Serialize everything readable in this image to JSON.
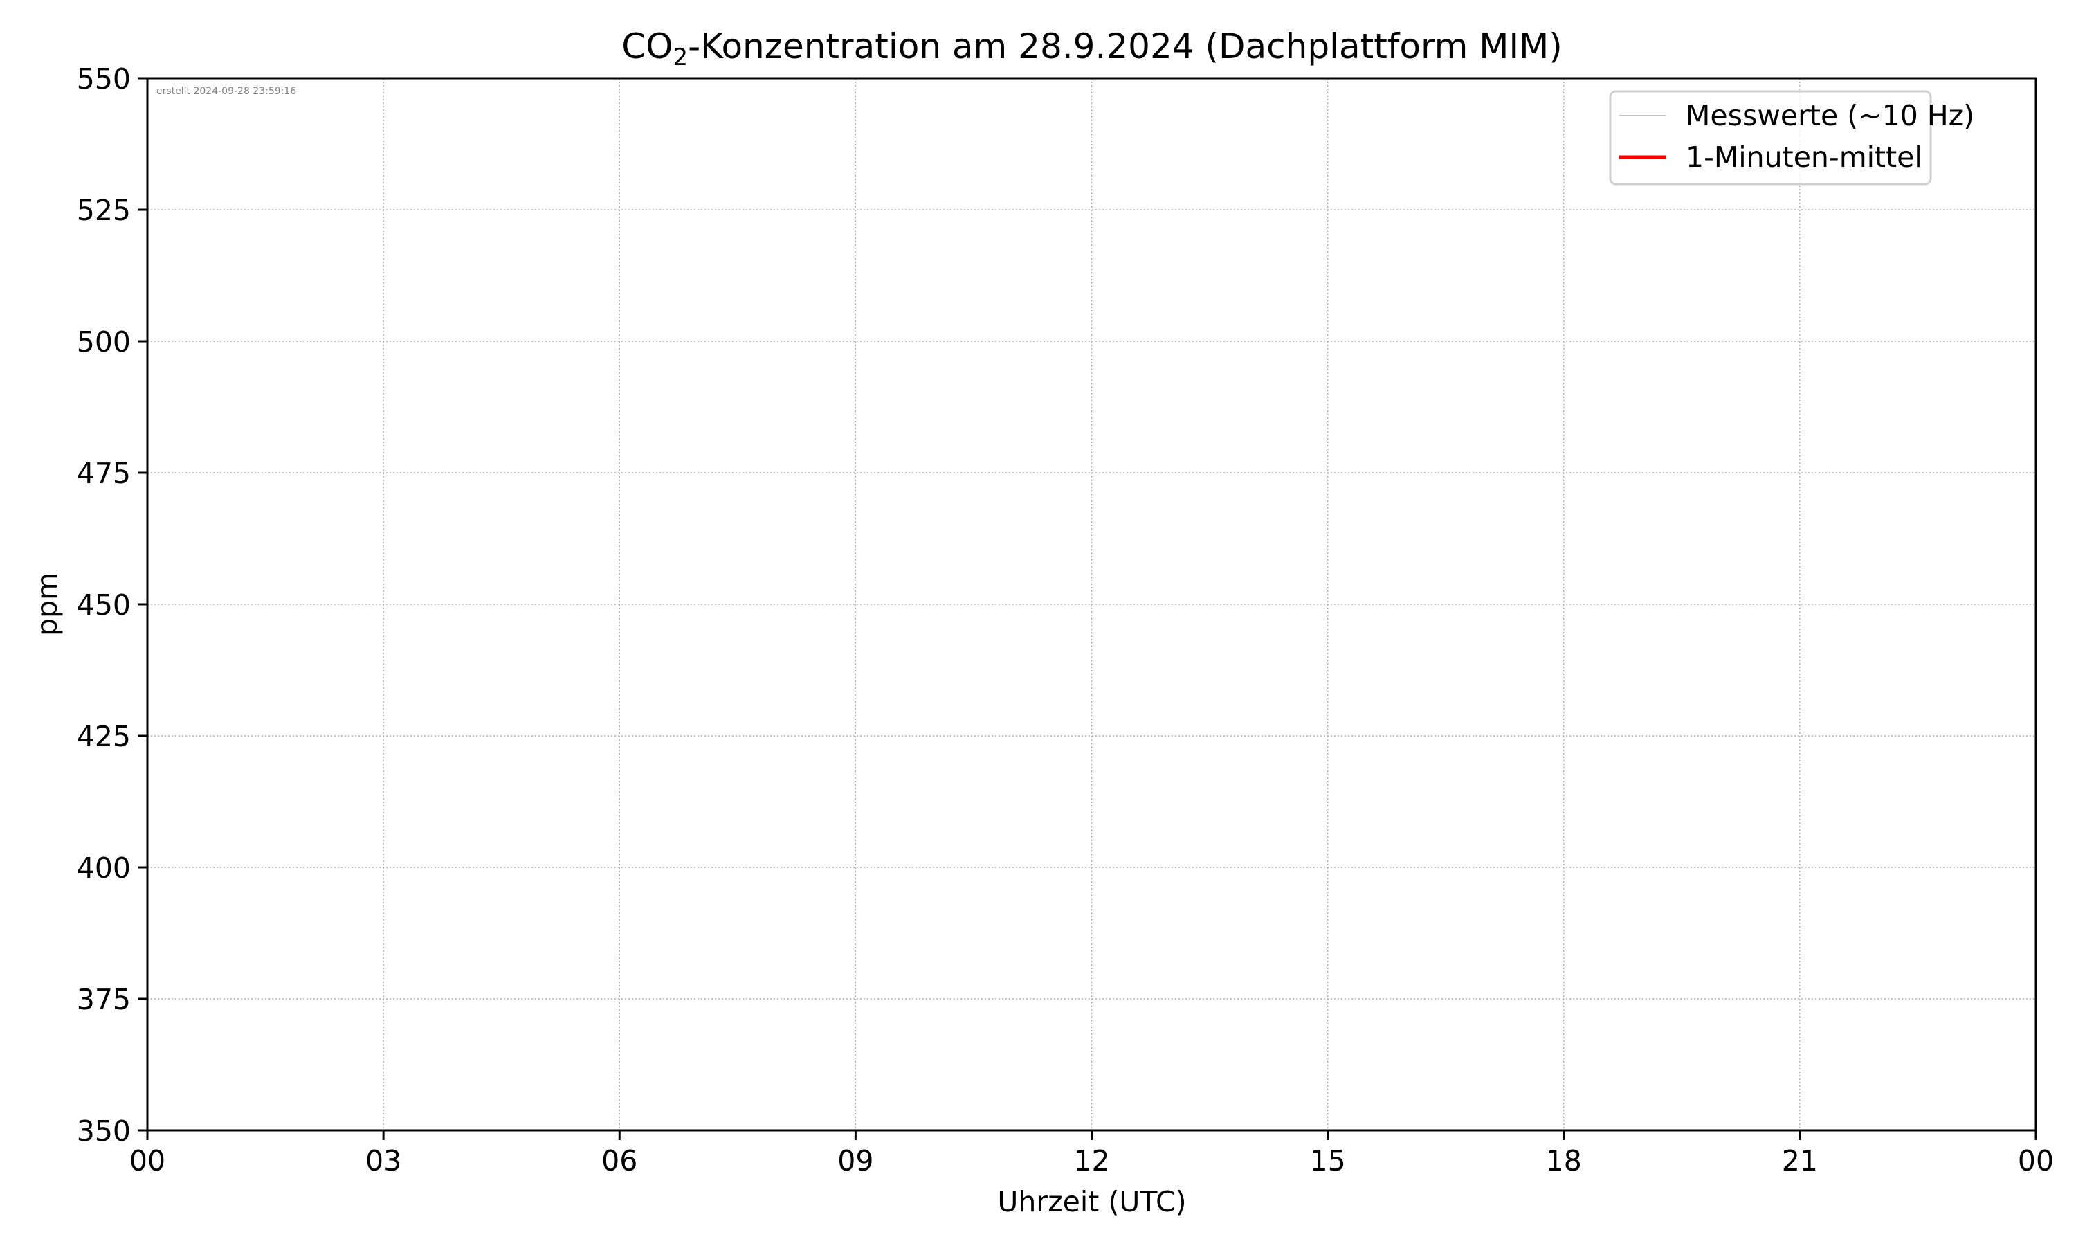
{
  "chart_data": {
    "type": "line",
    "title_main": "CO",
    "title_sub": "2",
    "title_rest": "-Konzentration am 28.9.2024 (Dachplattform MIM)",
    "xlabel": "Uhrzeit (UTC)",
    "ylabel": "ppm",
    "annotation": "erstellt 2024-09-28 23:59:16",
    "xticks": [
      "00",
      "03",
      "06",
      "09",
      "12",
      "15",
      "18",
      "21",
      "00"
    ],
    "yticks": [
      "350",
      "375",
      "400",
      "425",
      "450",
      "475",
      "500",
      "525",
      "550"
    ],
    "ylim": [
      350,
      550
    ],
    "xlim_hours": [
      0,
      24
    ],
    "grid": true,
    "legend_position": "top-right",
    "series": [
      {
        "name": "Messwerte (~10 Hz)",
        "color": "#c0c0c0",
        "values": []
      },
      {
        "name": "1-Minuten-mittel",
        "color": "#ff0000",
        "values": []
      }
    ]
  }
}
